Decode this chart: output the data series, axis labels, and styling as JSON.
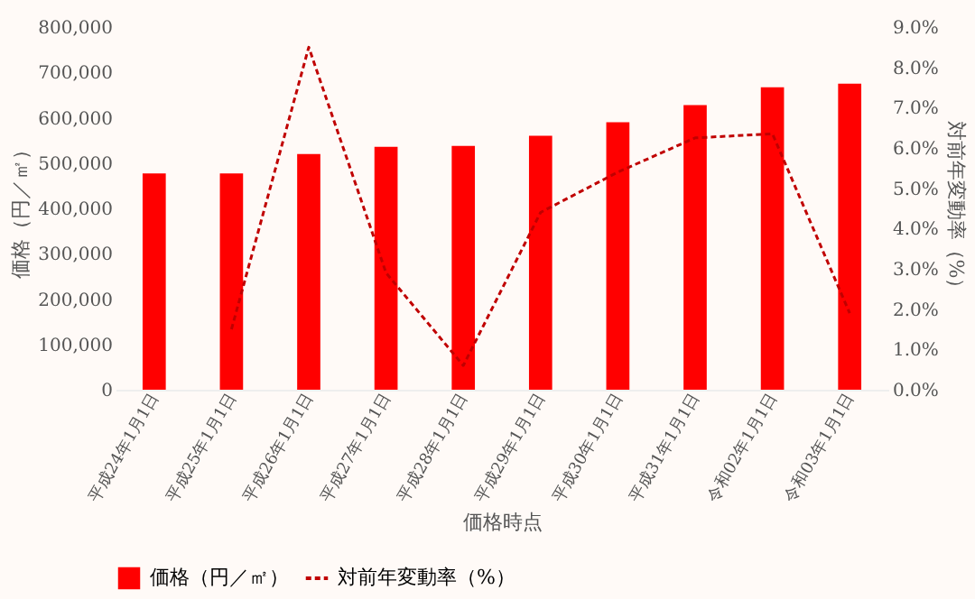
{
  "chart_data": {
    "type": "bar",
    "xlabel": "価格時点",
    "ylabel": "価格（円／㎡）",
    "y2label": "対前年変動率（%）",
    "categories": [
      "平成24年1月1日",
      "平成25年1月1日",
      "平成26年1月1日",
      "平成27年1月1日",
      "平成28年1月1日",
      "平成29年1月1日",
      "平成30年1月1日",
      "平成31年1月1日",
      "令和02年1月1日",
      "令和03年1月1日"
    ],
    "series": [
      {
        "name": "価格（円／㎡）",
        "color": "#ff0000",
        "values": [
          477000,
          477000,
          520000,
          536000,
          538000,
          560000,
          590000,
          628000,
          667000,
          675000
        ]
      },
      {
        "name": "対前年変動率（%）",
        "type": "line",
        "axis": "y2",
        "color": "#c00000",
        "line_style": "dashed",
        "values": [
          null,
          1.5,
          8.5,
          2.9,
          0.6,
          4.4,
          5.4,
          6.25,
          6.35,
          1.9
        ]
      }
    ],
    "ylim": [
      0,
      800000
    ],
    "yticks": [
      {
        "value": 0,
        "label": "0"
      },
      {
        "value": 100000,
        "label": "100,000"
      },
      {
        "value": 200000,
        "label": "200,000"
      },
      {
        "value": 300000,
        "label": "300,000"
      },
      {
        "value": 400000,
        "label": "400,000"
      },
      {
        "value": 500000,
        "label": "500,000"
      },
      {
        "value": 600000,
        "label": "600,000"
      },
      {
        "value": 700000,
        "label": "700,000"
      },
      {
        "value": 800000,
        "label": "800,000"
      }
    ],
    "y2lim": [
      0,
      9
    ],
    "y2ticks": [
      {
        "value": 0,
        "label": "0.0%"
      },
      {
        "value": 1,
        "label": "1.0%"
      },
      {
        "value": 2,
        "label": "2.0%"
      },
      {
        "value": 3,
        "label": "3.0%"
      },
      {
        "value": 4,
        "label": "4.0%"
      },
      {
        "value": 5,
        "label": "5.0%"
      },
      {
        "value": 6,
        "label": "6.0%"
      },
      {
        "value": 7,
        "label": "7.0%"
      },
      {
        "value": 8,
        "label": "8.0%"
      },
      {
        "value": 9,
        "label": "9.0%"
      }
    ],
    "grid": false,
    "legend": "bottom",
    "marker": "none"
  }
}
